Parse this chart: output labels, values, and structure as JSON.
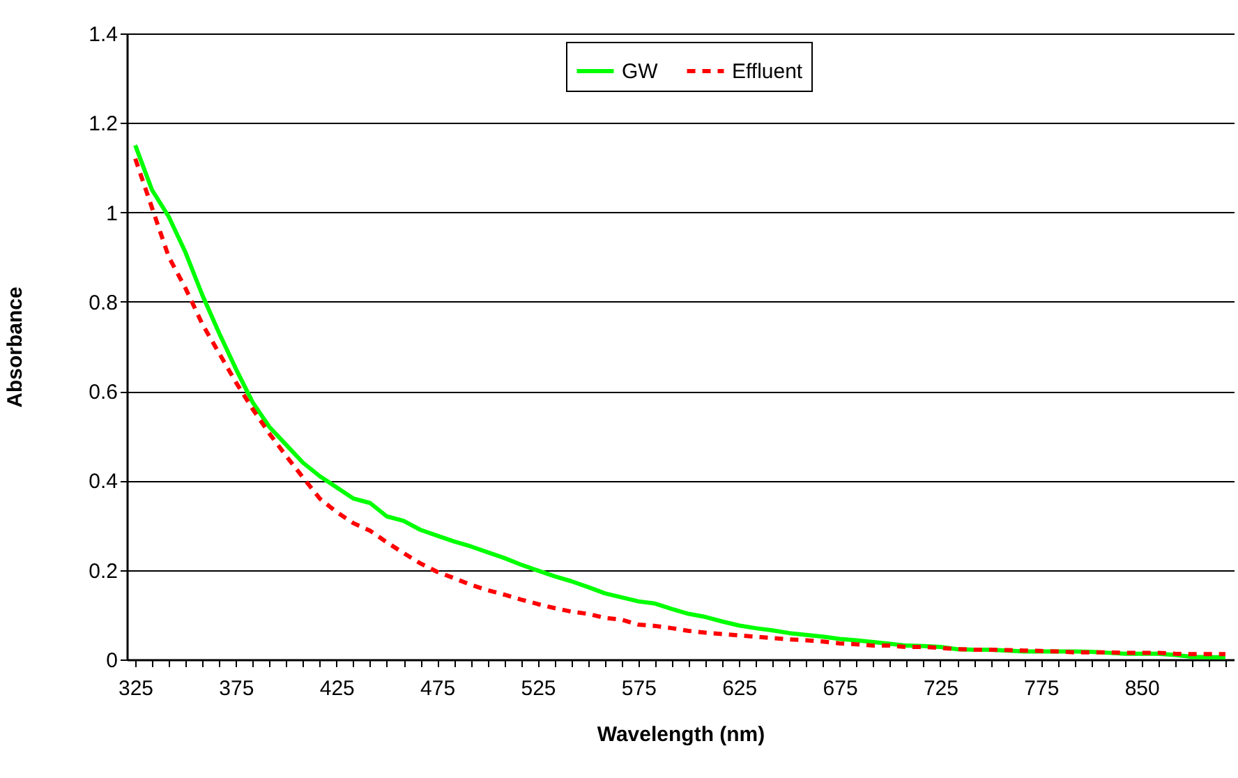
{
  "chart_data": {
    "type": "line",
    "xlabel": "Wavelength (nm)",
    "ylabel": "Absorbance",
    "categories": [
      "325",
      null,
      null,
      null,
      null,
      null,
      "375",
      null,
      null,
      null,
      null,
      null,
      "425",
      null,
      null,
      null,
      null,
      null,
      "475",
      null,
      null,
      null,
      null,
      null,
      "525",
      null,
      null,
      null,
      null,
      null,
      "575",
      null,
      null,
      null,
      null,
      null,
      "625",
      null,
      null,
      null,
      null,
      null,
      "675",
      null,
      null,
      null,
      null,
      null,
      "725",
      null,
      null,
      null,
      null,
      null,
      "775",
      null,
      null,
      null,
      null,
      null,
      "850",
      null,
      null,
      null,
      null,
      null
    ],
    "series": [
      {
        "name": "GW",
        "color": "#00ff00",
        "line_style": "solid",
        "values": [
          1.15,
          1.05,
          0.99,
          0.91,
          0.815,
          0.73,
          0.65,
          0.575,
          0.52,
          0.48,
          0.44,
          0.41,
          0.385,
          0.36,
          0.35,
          0.32,
          0.31,
          0.29,
          0.277,
          0.264,
          0.253,
          0.24,
          0.227,
          0.212,
          0.199,
          0.186,
          0.175,
          0.162,
          0.148,
          0.139,
          0.13,
          0.125,
          0.113,
          0.102,
          0.095,
          0.085,
          0.076,
          0.07,
          0.065,
          0.059,
          0.055,
          0.051,
          0.046,
          0.043,
          0.039,
          0.035,
          0.031,
          0.03,
          0.028,
          0.023,
          0.022,
          0.022,
          0.02,
          0.018,
          0.018,
          0.018,
          0.018,
          0.017,
          0.015,
          0.013,
          0.013,
          0.013,
          0.01,
          0.006,
          0.005,
          0.005
        ]
      },
      {
        "name": "Effluent",
        "color": "#ff0000",
        "line_style": "dashed",
        "values": [
          1.12,
          1.01,
          0.9,
          0.83,
          0.75,
          0.685,
          0.62,
          0.56,
          0.505,
          0.455,
          0.407,
          0.36,
          0.33,
          0.305,
          0.288,
          0.262,
          0.238,
          0.215,
          0.196,
          0.182,
          0.167,
          0.155,
          0.145,
          0.134,
          0.124,
          0.115,
          0.107,
          0.102,
          0.093,
          0.089,
          0.078,
          0.075,
          0.07,
          0.064,
          0.06,
          0.057,
          0.054,
          0.051,
          0.048,
          0.045,
          0.043,
          0.04,
          0.036,
          0.034,
          0.031,
          0.031,
          0.028,
          0.028,
          0.026,
          0.023,
          0.022,
          0.022,
          0.021,
          0.02,
          0.019,
          0.018,
          0.016,
          0.016,
          0.016,
          0.015,
          0.015,
          0.015,
          0.013,
          0.012,
          0.012,
          0.012
        ]
      }
    ],
    "ylim": [
      0,
      1.4
    ],
    "yticks": [
      0,
      0.2,
      0.4,
      0.6,
      0.8,
      1,
      1.2,
      1.4
    ],
    "grid": "y",
    "legend": "top"
  }
}
